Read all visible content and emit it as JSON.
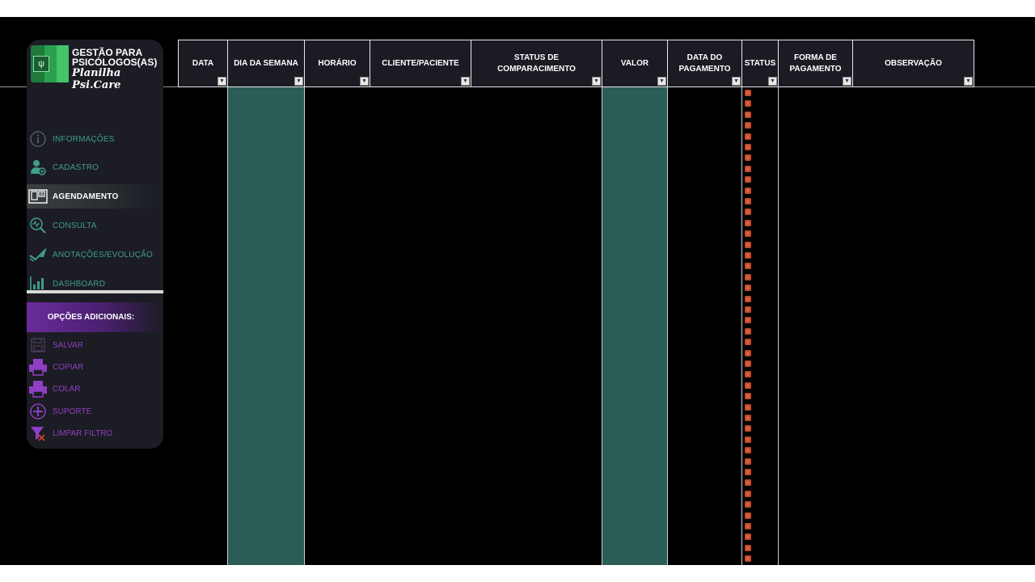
{
  "sidebar": {
    "brand_line1": "GESTÃO PARA PSICÓLOGOS(AS)",
    "brand_line2": "Planilha Psi.Care",
    "nav": [
      {
        "label": "INFORMAÇÕES",
        "icon": "info-icon"
      },
      {
        "label": "CADASTRO",
        "icon": "user-add-icon"
      },
      {
        "label": "AGENDAMENTO",
        "icon": "calendar-book-icon",
        "active": true
      },
      {
        "label": "CONSULTA",
        "icon": "search-pulse-icon"
      },
      {
        "label": "ANOTAÇÕES/EVOLUÇÃO",
        "icon": "pen-icon"
      },
      {
        "label": "DASHBOARD",
        "icon": "bar-chart-icon"
      }
    ],
    "options_title": "OPÇÕES ADICIONAIS:",
    "options": [
      {
        "label": "SALVAR",
        "icon": "save-icon"
      },
      {
        "label": "COPIAR",
        "icon": "printer-icon"
      },
      {
        "label": "COLAR",
        "icon": "printer-icon"
      },
      {
        "label": "SUPORTE",
        "icon": "plus-circle-icon"
      },
      {
        "label": "LIMPAR FILTRO",
        "icon": "clear-filter-icon"
      }
    ]
  },
  "table": {
    "columns": [
      "DATA",
      "DIA DA SEMANA",
      "HORÁRIO",
      "CLIENTE/PACIENTE",
      "STATUS DE COMPARACIMENTO",
      "VALOR",
      "DATA DO PAGAMENTO",
      "STATUS",
      "FORMA DE PAGAMENTO",
      "OBSERVAÇÃO"
    ]
  },
  "colors": {
    "background": "#000000",
    "sidebar": "#1c1c24",
    "teal_text": "#3f9e8b",
    "purple_text": "#8e3fc4",
    "highlight_column": "#295d55",
    "status_marker": "#e0603a"
  }
}
